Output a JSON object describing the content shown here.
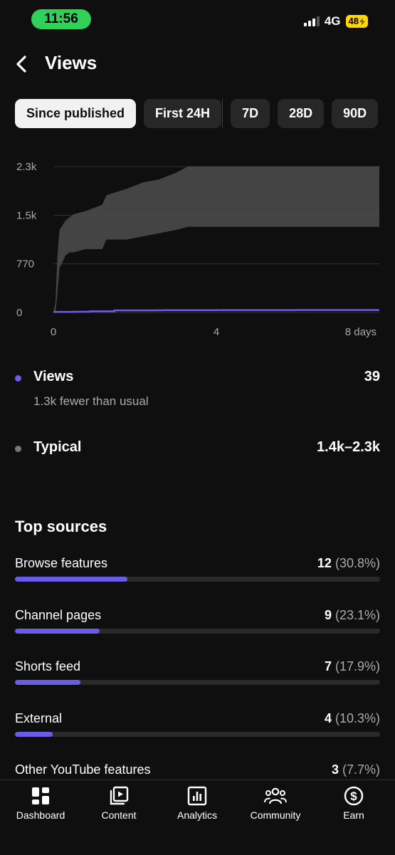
{
  "status_bar": {
    "time": "11:56",
    "network": "4G",
    "battery": "48"
  },
  "header": {
    "title": "Views"
  },
  "chips": [
    {
      "label": "Since published",
      "active": true
    },
    {
      "label": "First 24H",
      "active": false
    },
    {
      "label": "7D",
      "active": false
    },
    {
      "label": "28D",
      "active": false
    },
    {
      "label": "90D",
      "active": false
    }
  ],
  "chart_data": {
    "type": "area",
    "y_ticks": [
      "2.3k",
      "1.5k",
      "770",
      "0"
    ],
    "x_ticks": [
      "0",
      "4",
      "8 days"
    ],
    "ylim": [
      0,
      2300
    ],
    "xlim": [
      0,
      8
    ],
    "typical_band": {
      "x": [
        0,
        0.05,
        0.1,
        0.15,
        0.3,
        0.4,
        0.5,
        0.8,
        1.2,
        1.3,
        1.8,
        2.2,
        2.6,
        3.0,
        3.3,
        4.0,
        5.0,
        6.0,
        7.0,
        8.0
      ],
      "lower": [
        0,
        0,
        300,
        700,
        900,
        950,
        950,
        1000,
        1000,
        1150,
        1150,
        1200,
        1250,
        1300,
        1350,
        1350,
        1350,
        1350,
        1350,
        1350
      ],
      "upper": [
        0,
        150,
        900,
        1300,
        1450,
        1500,
        1550,
        1600,
        1700,
        1850,
        1950,
        2050,
        2100,
        2200,
        2300,
        2300,
        2300,
        2300,
        2300,
        2300
      ]
    },
    "views_series": {
      "x": [
        0,
        0.5,
        0.9,
        1.5,
        2.5,
        2.7,
        4.0,
        6.0,
        8.0
      ],
      "values": [
        10,
        12,
        20,
        33,
        35,
        37,
        38,
        39,
        39
      ]
    },
    "colors": {
      "views": "#6b5ce7",
      "typical": "#555555"
    }
  },
  "metrics": {
    "views": {
      "label": "Views",
      "value": "39",
      "sub": "1.3k fewer than usual",
      "color": "#6b5ce7"
    },
    "typical": {
      "label": "Typical",
      "value": "1.4k–2.3k",
      "color": "#777777"
    }
  },
  "top_sources": {
    "title": "Top sources",
    "items": [
      {
        "name": "Browse features",
        "count": "12",
        "pct": "(30.8%)",
        "share": 30.8
      },
      {
        "name": "Channel pages",
        "count": "9",
        "pct": "(23.1%)",
        "share": 23.1
      },
      {
        "name": "Shorts feed",
        "count": "7",
        "pct": "(17.9%)",
        "share": 17.9
      },
      {
        "name": "External",
        "count": "4",
        "pct": "(10.3%)",
        "share": 10.3
      },
      {
        "name": "Other YouTube features",
        "count": "3",
        "pct": "(7.7%)",
        "share": 7.7
      }
    ]
  },
  "bottom_nav": [
    {
      "label": "Dashboard",
      "icon": "dashboard-icon"
    },
    {
      "label": "Content",
      "icon": "content-icon"
    },
    {
      "label": "Analytics",
      "icon": "analytics-icon"
    },
    {
      "label": "Community",
      "icon": "community-icon"
    },
    {
      "label": "Earn",
      "icon": "earn-icon"
    }
  ]
}
